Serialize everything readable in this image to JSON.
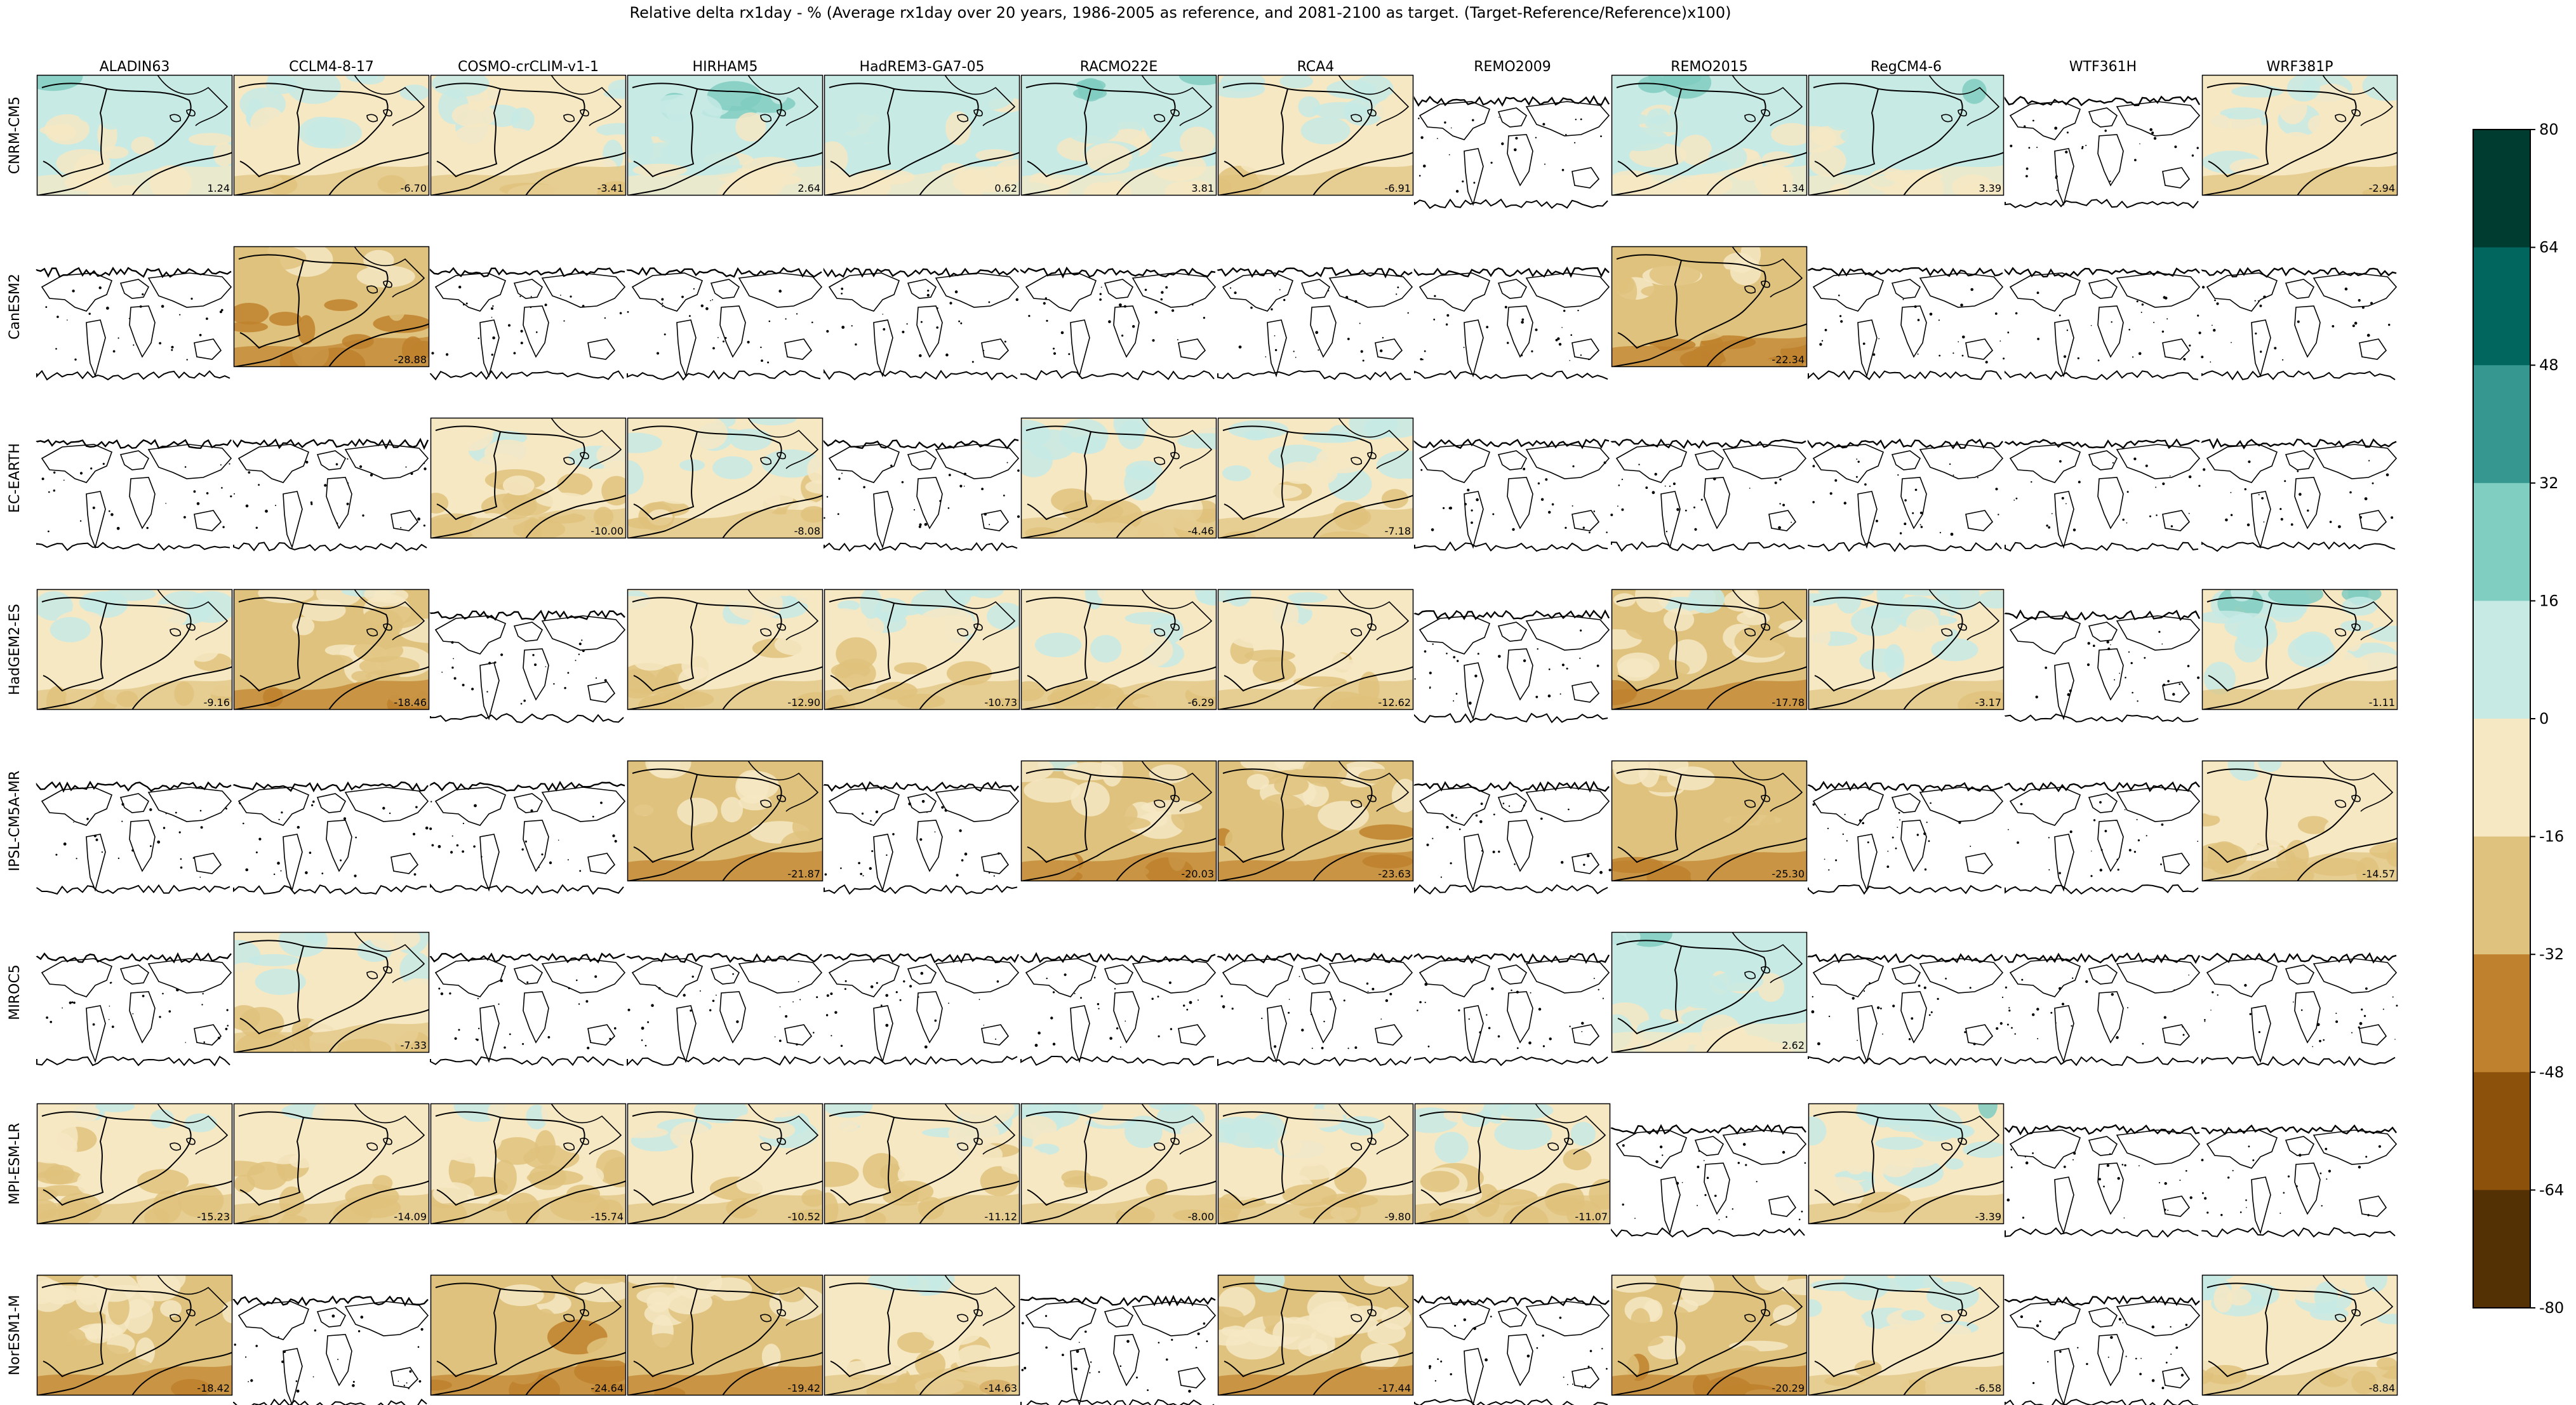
{
  "chart_data": {
    "type": "heatmap",
    "title": "Relative delta rx1day - % (Average rx1day over 20 years, 1986-2005 as reference, and 2081-2100 as target. (Target-Reference/Reference)x100)",
    "columns": [
      "ALADIN63",
      "CCLM4-8-17",
      "COSMO-crCLIM-v1-1",
      "HIRHAM5",
      "HadREM3-GA7-05",
      "RACMO22E",
      "RCA4",
      "REMO2009",
      "REMO2015",
      "RegCM4-6",
      "WTF361H",
      "WRF381P"
    ],
    "rows": [
      "CNRM-CM5",
      "CanESM2",
      "EC-EARTH",
      "HadGEM2-ES",
      "IPSL-CM5A-MR",
      "MIROC5",
      "MPI-ESM-LR",
      "NorESM1-M"
    ],
    "values": [
      [
        "1.24",
        "-6.70",
        "-3.41",
        "2.64",
        "0.62",
        "3.81",
        "-6.91",
        null,
        "1.34",
        "3.39",
        null,
        "-2.94"
      ],
      [
        null,
        "-28.88",
        null,
        null,
        null,
        null,
        null,
        null,
        "-22.34",
        null,
        null,
        null
      ],
      [
        null,
        null,
        "-10.00",
        "-8.08",
        null,
        "-4.46",
        "-7.18",
        null,
        null,
        null,
        null,
        null
      ],
      [
        "-9.16",
        "-18.46",
        null,
        "-12.90",
        "-10.73",
        "-6.29",
        "-12.62",
        null,
        "-17.78",
        "-3.17",
        null,
        "-1.11"
      ],
      [
        null,
        null,
        null,
        "-21.87",
        null,
        "-20.03",
        "-23.63",
        null,
        "-25.30",
        null,
        null,
        "-14.57"
      ],
      [
        null,
        "-7.33",
        null,
        null,
        null,
        null,
        null,
        null,
        "2.62",
        null,
        null,
        null
      ],
      [
        "-15.23",
        "-14.09",
        "-15.74",
        "-10.52",
        "-11.12",
        "-8.00",
        "-9.80",
        "-11.07",
        null,
        "-3.39",
        null,
        null
      ],
      [
        "-18.42",
        null,
        "-24.64",
        "-19.42",
        "-14.63",
        null,
        "-17.44",
        null,
        "-20.29",
        "-6.58",
        null,
        "-8.84"
      ]
    ],
    "colorbar": {
      "ticks": [
        "80",
        "64",
        "48",
        "32",
        "16",
        "0",
        "-16",
        "-32",
        "-48",
        "-64",
        "-80"
      ],
      "colors": [
        "#003c30",
        "#01665e",
        "#35978f",
        "#80cdc1",
        "#c7eae5",
        "#f6e8c3",
        "#dfc27d",
        "#bf812d",
        "#8c510a",
        "#543005"
      ],
      "range": [
        -80,
        80
      ]
    }
  }
}
